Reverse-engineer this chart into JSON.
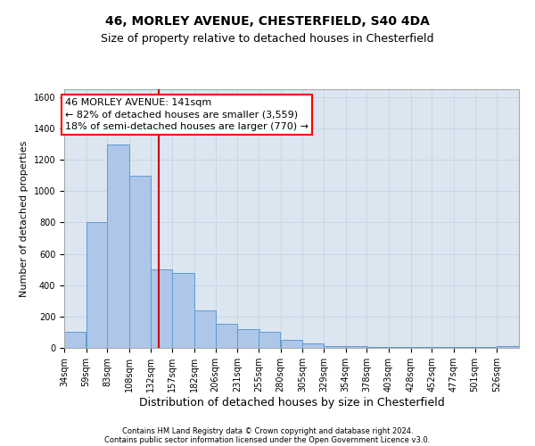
{
  "title": "46, MORLEY AVENUE, CHESTERFIELD, S40 4DA",
  "subtitle": "Size of property relative to detached houses in Chesterfield",
  "xlabel": "Distribution of detached houses by size in Chesterfield",
  "ylabel": "Number of detached properties",
  "bin_edges": [
    34,
    59,
    83,
    108,
    132,
    157,
    182,
    206,
    231,
    255,
    280,
    305,
    329,
    354,
    378,
    403,
    428,
    452,
    477,
    501,
    526,
    551
  ],
  "bar_heights": [
    100,
    800,
    1300,
    1100,
    500,
    480,
    240,
    155,
    120,
    100,
    50,
    30,
    10,
    10,
    8,
    5,
    5,
    5,
    5,
    5,
    10
  ],
  "bar_color": "#aec6e8",
  "bar_edge_color": "#5b9bd5",
  "grid_color": "#c8d4e3",
  "background_color": "#dce6f1",
  "property_size": 141,
  "vline_color": "#cc0000",
  "ylim": [
    0,
    1650
  ],
  "yticks": [
    0,
    200,
    400,
    600,
    800,
    1000,
    1200,
    1400,
    1600
  ],
  "annotation_text": "46 MORLEY AVENUE: 141sqm\n← 82% of detached houses are smaller (3,559)\n18% of semi-detached houses are larger (770) →",
  "footer_line1": "Contains HM Land Registry data © Crown copyright and database right 2024.",
  "footer_line2": "Contains public sector information licensed under the Open Government Licence v3.0.",
  "title_fontsize": 10,
  "subtitle_fontsize": 9,
  "ylabel_fontsize": 8,
  "xlabel_fontsize": 9,
  "tick_label_fontsize": 7,
  "annotation_fontsize": 8,
  "footer_fontsize": 6
}
